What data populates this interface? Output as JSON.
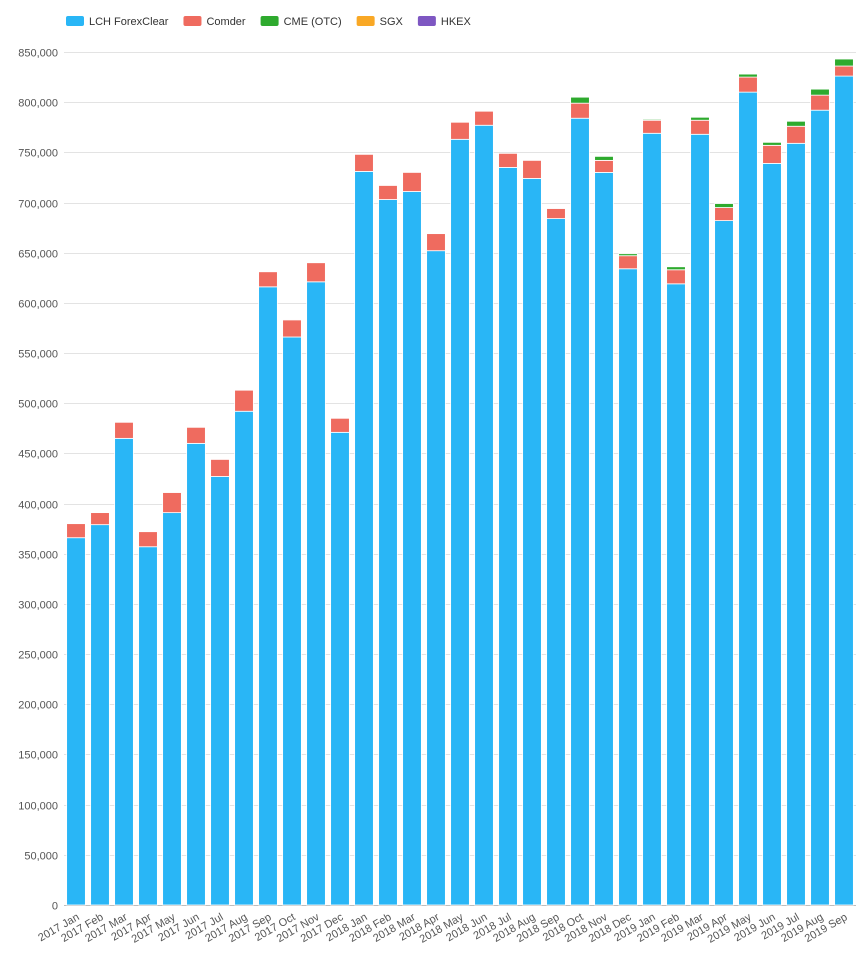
{
  "chart_data": {
    "type": "bar",
    "stacked": true,
    "title": "",
    "xlabel": "",
    "ylabel": "",
    "ylim": [
      0,
      850000
    ],
    "y_ticks": [
      0,
      50000,
      100000,
      150000,
      200000,
      250000,
      300000,
      350000,
      400000,
      450000,
      500000,
      550000,
      600000,
      650000,
      700000,
      750000,
      800000,
      850000
    ],
    "y_tick_labels": [
      "0",
      "50,000",
      "100,000",
      "150,000",
      "200,000",
      "250,000",
      "300,000",
      "350,000",
      "400,000",
      "450,000",
      "500,000",
      "550,000",
      "600,000",
      "650,000",
      "700,000",
      "750,000",
      "800,000",
      "850,000"
    ],
    "grid": true,
    "legend_position": "top-left",
    "categories": [
      "2017 Jan",
      "2017 Feb",
      "2017 Mar",
      "2017 Apr",
      "2017 May",
      "2017 Jun",
      "2017 Jul",
      "2017 Aug",
      "2017 Sep",
      "2017 Oct",
      "2017 Nov",
      "2017 Dec",
      "2018 Jan",
      "2018 Feb",
      "2018 Mar",
      "2018 Apr",
      "2018 May",
      "2018 Jun",
      "2018 Jul",
      "2018 Aug",
      "2018 Sep",
      "2018 Oct",
      "2018 Nov",
      "2018 Dec",
      "2019 Jan",
      "2019 Feb",
      "2019 Mar",
      "2019 Apr",
      "2019 May",
      "2019 Jun",
      "2019 Jul",
      "2019 Aug",
      "2019 Sep"
    ],
    "series": [
      {
        "name": "LCH ForexClear",
        "color": "#29b6f6",
        "values": [
          366000,
          379000,
          465000,
          357000,
          391000,
          460000,
          427000,
          492000,
          616000,
          566000,
          621000,
          471000,
          731000,
          703000,
          711000,
          652000,
          763000,
          777000,
          735000,
          724000,
          684000,
          784000,
          730000,
          634000,
          769000,
          619000,
          768000,
          682000,
          810000,
          739000,
          759000,
          792000,
          826000
        ]
      },
      {
        "name": "Comder",
        "color": "#ef6b5f",
        "values": [
          14000,
          12000,
          16000,
          15000,
          20000,
          16000,
          17000,
          21000,
          15000,
          17000,
          19000,
          14000,
          17000,
          14000,
          19000,
          17000,
          17000,
          14000,
          14000,
          18000,
          10000,
          15000,
          12000,
          13000,
          13000,
          14000,
          14000,
          13000,
          15000,
          18000,
          17000,
          15000,
          10000
        ]
      },
      {
        "name": "CME (OTC)",
        "color": "#2eaa2e",
        "values": [
          0,
          0,
          0,
          0,
          0,
          0,
          0,
          0,
          0,
          0,
          0,
          0,
          0,
          0,
          0,
          0,
          0,
          0,
          0,
          0,
          0,
          6000,
          4000,
          2000,
          1000,
          3000,
          3000,
          4000,
          3000,
          3000,
          5000,
          6000,
          7000
        ]
      },
      {
        "name": "SGX",
        "color": "#f9a825",
        "values": [
          0,
          0,
          0,
          0,
          0,
          0,
          0,
          0,
          0,
          0,
          0,
          0,
          0,
          0,
          0,
          0,
          0,
          0,
          0,
          0,
          0,
          0,
          0,
          0,
          0,
          0,
          0,
          0,
          0,
          0,
          0,
          0,
          0
        ]
      },
      {
        "name": "HKEX",
        "color": "#7e57c2",
        "values": [
          0,
          0,
          0,
          0,
          0,
          0,
          0,
          0,
          0,
          0,
          0,
          0,
          0,
          0,
          0,
          0,
          0,
          0,
          0,
          0,
          0,
          0,
          0,
          0,
          0,
          0,
          0,
          0,
          0,
          0,
          0,
          0,
          0
        ]
      }
    ]
  }
}
